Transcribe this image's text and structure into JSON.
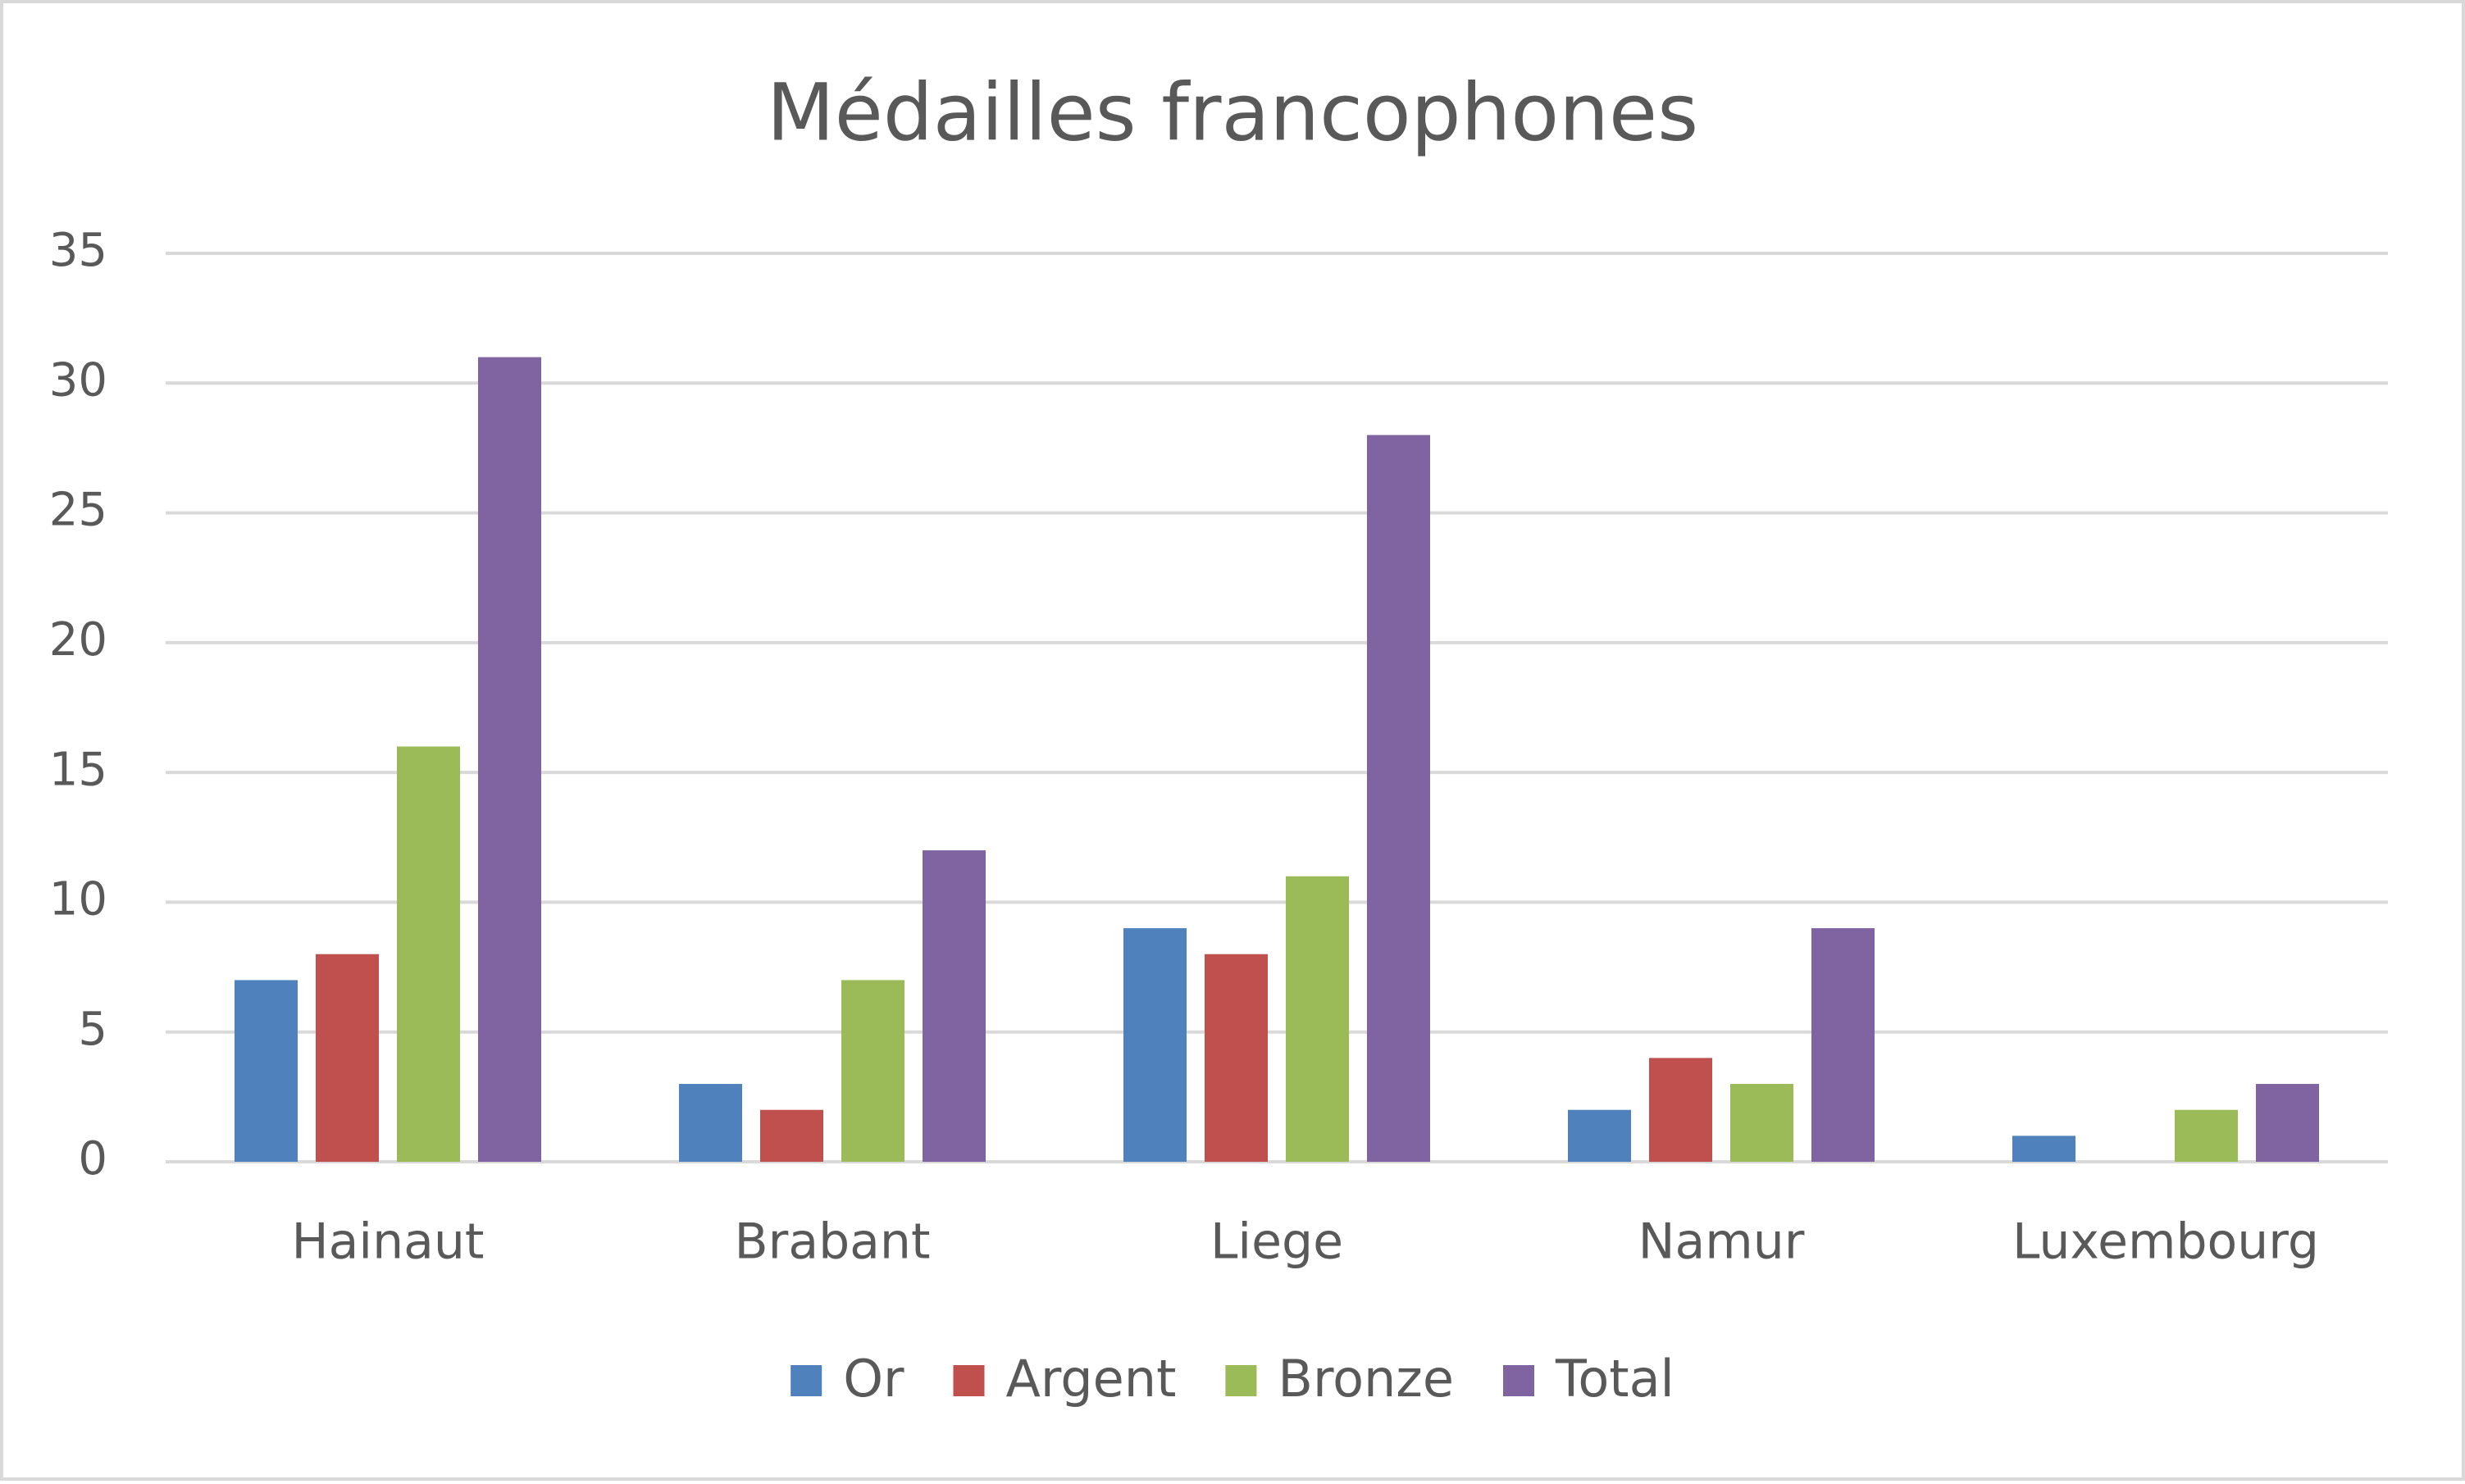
{
  "chart_data": {
    "type": "bar",
    "title": "Médailles francophones",
    "categories": [
      "Hainaut",
      "Brabant",
      "Liege",
      "Namur",
      "Luxembourg"
    ],
    "series": [
      {
        "name": "Or",
        "color": "#4f81bd",
        "values": [
          7,
          3,
          9,
          2,
          1
        ]
      },
      {
        "name": "Argent",
        "color": "#c0504d",
        "values": [
          8,
          2,
          8,
          4,
          0
        ]
      },
      {
        "name": "Bronze",
        "color": "#9bbb59",
        "values": [
          16,
          7,
          11,
          3,
          2
        ]
      },
      {
        "name": "Total",
        "color": "#8064a2",
        "values": [
          31,
          12,
          28,
          9,
          3
        ]
      }
    ],
    "ylim": [
      0,
      35
    ],
    "yticks": [
      0,
      5,
      10,
      15,
      20,
      25,
      30,
      35
    ],
    "grid": true,
    "legend": "bottom"
  }
}
